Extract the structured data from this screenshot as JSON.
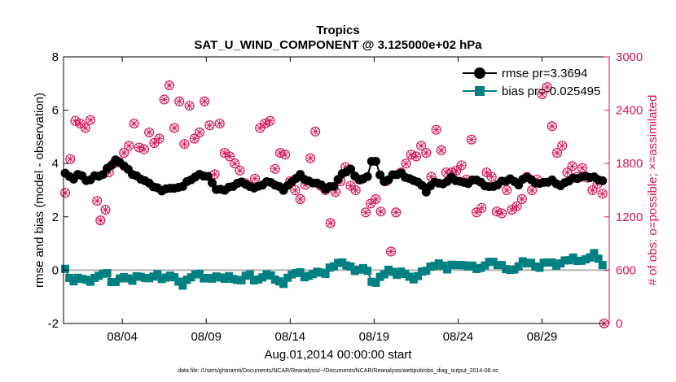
{
  "chart_data": {
    "type": "line",
    "title": "Tropics",
    "subtitle": "SAT_U_WIND_COMPONENT @ 3.125000e+02 hPa",
    "xlabel": "Aug.01,2014 00:00:00 start",
    "ylabel": "rmse and bias (model - observation)",
    "y2label": "# of obs: o=possible; ×=assimilated",
    "footnote": "data file: /Users/gharamti/Documents/NCAR/Reanalysis/~/Documents/NCAR/Reanalysis/webpub/obs_diag_output_2014-08.nc",
    "xlim": [
      0,
      32.5
    ],
    "ylim": [
      -2,
      8
    ],
    "y2lim": [
      0,
      3000
    ],
    "x_ticks": [
      3.5,
      8.5,
      13.5,
      18.5,
      23.5,
      28.5
    ],
    "x_tick_labels": [
      "08/04",
      "08/09",
      "08/14",
      "08/19",
      "08/24",
      "08/29"
    ],
    "y_ticks": [
      -2,
      0,
      2,
      4,
      6,
      8
    ],
    "y_tick_labels": [
      "-2",
      "0",
      "2",
      "4",
      "6",
      "8"
    ],
    "y2_ticks": [
      0,
      600,
      1200,
      1800,
      2400,
      3000
    ],
    "y2_tick_labels": [
      "0",
      "600",
      "1200",
      "1800",
      "2400",
      "3000"
    ],
    "zero_line": 0,
    "legend_position": "top-right",
    "colors": {
      "rmse": "#000000",
      "bias": "#008080",
      "obs": "#d4145a",
      "zero": "#b3b3b3"
    },
    "series": [
      {
        "name": "rmse",
        "legend": "rmse pr=3.3694",
        "anchors": [
          [
            0.1,
            3.6
          ],
          [
            0.6,
            3.4
          ],
          [
            1.0,
            3.7
          ],
          [
            1.4,
            3.3
          ],
          [
            1.8,
            3.5
          ],
          [
            2.2,
            3.5
          ],
          [
            2.7,
            3.9
          ],
          [
            3.1,
            4.1
          ],
          [
            3.5,
            3.95
          ],
          [
            3.9,
            3.75
          ],
          [
            4.4,
            3.5
          ],
          [
            4.9,
            3.3
          ],
          [
            5.4,
            3.15
          ],
          [
            5.9,
            3.0
          ],
          [
            6.4,
            3.05
          ],
          [
            6.9,
            3.1
          ],
          [
            7.3,
            3.3
          ],
          [
            7.8,
            3.45
          ],
          [
            8.2,
            3.6
          ],
          [
            8.7,
            3.5
          ],
          [
            9.1,
            3.0
          ],
          [
            9.6,
            3.0
          ],
          [
            10.1,
            3.2
          ],
          [
            10.6,
            3.3
          ],
          [
            11.1,
            3.1
          ],
          [
            11.6,
            3.15
          ],
          [
            12.1,
            3.3
          ],
          [
            12.6,
            3.2
          ],
          [
            13.1,
            3.05
          ],
          [
            13.6,
            3.3
          ],
          [
            14.1,
            3.55
          ],
          [
            14.6,
            3.35
          ],
          [
            15.1,
            3.25
          ],
          [
            15.6,
            3.05
          ],
          [
            16.1,
            3.2
          ],
          [
            16.6,
            3.6
          ],
          [
            17.1,
            3.75
          ],
          [
            17.6,
            3.4
          ],
          [
            18.1,
            3.5
          ],
          [
            18.5,
            4.35
          ],
          [
            18.8,
            3.6
          ],
          [
            19.2,
            3.3
          ],
          [
            19.6,
            3.55
          ],
          [
            20.1,
            3.6
          ],
          [
            20.6,
            3.45
          ],
          [
            21.1,
            3.3
          ],
          [
            21.6,
            2.95
          ],
          [
            22.1,
            3.35
          ],
          [
            22.6,
            3.2
          ],
          [
            23.1,
            3.45
          ],
          [
            23.6,
            3.35
          ],
          [
            24.1,
            3.25
          ],
          [
            24.6,
            3.4
          ],
          [
            25.1,
            3.2
          ],
          [
            25.6,
            3.1
          ],
          [
            26.1,
            3.3
          ],
          [
            26.6,
            3.45
          ],
          [
            27.1,
            3.2
          ],
          [
            27.6,
            3.5
          ],
          [
            28.1,
            3.3
          ],
          [
            28.6,
            3.25
          ],
          [
            29.1,
            3.35
          ],
          [
            29.6,
            3.2
          ],
          [
            30.1,
            3.35
          ],
          [
            30.6,
            3.45
          ],
          [
            31.1,
            3.55
          ],
          [
            31.6,
            3.45
          ],
          [
            32.2,
            3.3
          ]
        ]
      },
      {
        "name": "bias",
        "legend": "bias pr=-0.025495",
        "anchors": [
          [
            0.1,
            0.0
          ],
          [
            0.5,
            -0.5
          ],
          [
            1.0,
            -0.2
          ],
          [
            1.5,
            -0.45
          ],
          [
            2.0,
            -0.3
          ],
          [
            2.5,
            0.0
          ],
          [
            3.0,
            -0.55
          ],
          [
            3.5,
            -0.25
          ],
          [
            4.0,
            -0.35
          ],
          [
            4.5,
            -0.2
          ],
          [
            5.0,
            -0.4
          ],
          [
            5.5,
            -0.1
          ],
          [
            6.0,
            -0.35
          ],
          [
            6.5,
            -0.2
          ],
          [
            7.0,
            -0.55
          ],
          [
            7.5,
            -0.3
          ],
          [
            8.0,
            -0.15
          ],
          [
            8.5,
            -0.3
          ],
          [
            9.0,
            -0.25
          ],
          [
            9.5,
            -0.35
          ],
          [
            10.0,
            -0.2
          ],
          [
            10.5,
            -0.45
          ],
          [
            11.0,
            -0.15
          ],
          [
            11.5,
            -0.4
          ],
          [
            12.0,
            -0.15
          ],
          [
            12.5,
            -0.3
          ],
          [
            13.0,
            -0.5
          ],
          [
            13.5,
            -0.2
          ],
          [
            14.0,
            -0.1
          ],
          [
            14.5,
            -0.25
          ],
          [
            15.0,
            -0.05
          ],
          [
            15.5,
            -0.2
          ],
          [
            16.0,
            0.2
          ],
          [
            16.5,
            0.3
          ],
          [
            17.0,
            0.1
          ],
          [
            17.5,
            0.0
          ],
          [
            18.0,
            0.15
          ],
          [
            18.4,
            -0.6
          ],
          [
            18.8,
            -0.3
          ],
          [
            19.3,
            0.05
          ],
          [
            19.8,
            -0.2
          ],
          [
            20.3,
            -0.05
          ],
          [
            20.8,
            -0.35
          ],
          [
            21.3,
            -0.15
          ],
          [
            21.8,
            0.1
          ],
          [
            22.3,
            0.3
          ],
          [
            22.8,
            0.0
          ],
          [
            23.3,
            0.25
          ],
          [
            23.8,
            0.2
          ],
          [
            24.3,
            0.1
          ],
          [
            24.8,
            0.05
          ],
          [
            25.3,
            0.35
          ],
          [
            25.8,
            0.2
          ],
          [
            26.3,
            0.1
          ],
          [
            26.8,
            0.0
          ],
          [
            27.3,
            0.25
          ],
          [
            27.8,
            0.3
          ],
          [
            28.3,
            0.1
          ],
          [
            28.8,
            0.3
          ],
          [
            29.3,
            0.2
          ],
          [
            29.8,
            0.35
          ],
          [
            30.3,
            0.4
          ],
          [
            30.8,
            0.35
          ],
          [
            31.3,
            0.5
          ],
          [
            31.7,
            0.6
          ],
          [
            32.1,
            0.15
          ]
        ]
      },
      {
        "name": "obs",
        "axis": "right",
        "marker": "circle-x",
        "points": [
          [
            0.1,
            1470
          ],
          [
            0.4,
            1850
          ],
          [
            0.7,
            2280
          ],
          [
            1.0,
            2250
          ],
          [
            1.3,
            2200
          ],
          [
            1.6,
            2290
          ],
          [
            2.0,
            1380
          ],
          [
            2.2,
            1160
          ],
          [
            2.5,
            1280
          ],
          [
            2.7,
            1700
          ],
          [
            3.0,
            1800
          ],
          [
            3.3,
            1820
          ],
          [
            3.6,
            1920
          ],
          [
            3.9,
            2000
          ],
          [
            4.2,
            2250
          ],
          [
            4.5,
            1980
          ],
          [
            4.8,
            1960
          ],
          [
            5.1,
            2150
          ],
          [
            5.4,
            2030
          ],
          [
            5.7,
            2080
          ],
          [
            6.0,
            2520
          ],
          [
            6.3,
            2680
          ],
          [
            6.6,
            2200
          ],
          [
            6.9,
            2500
          ],
          [
            7.2,
            2020
          ],
          [
            7.5,
            2450
          ],
          [
            7.8,
            2080
          ],
          [
            8.1,
            2150
          ],
          [
            8.4,
            2500
          ],
          [
            8.7,
            2230
          ],
          [
            9.0,
            1680
          ],
          [
            9.3,
            2250
          ],
          [
            9.6,
            1920
          ],
          [
            9.9,
            1880
          ],
          [
            10.2,
            1800
          ],
          [
            10.5,
            1720
          ],
          [
            10.8,
            1580
          ],
          [
            11.1,
            1550
          ],
          [
            11.4,
            1630
          ],
          [
            11.7,
            2200
          ],
          [
            12.0,
            2250
          ],
          [
            12.3,
            2280
          ],
          [
            12.6,
            1740
          ],
          [
            12.9,
            1920
          ],
          [
            13.2,
            1900
          ],
          [
            13.5,
            1600
          ],
          [
            13.8,
            1500
          ],
          [
            14.1,
            1400
          ],
          [
            14.4,
            1560
          ],
          [
            14.7,
            1860
          ],
          [
            15.0,
            2160
          ],
          [
            15.3,
            1550
          ],
          [
            15.6,
            1500
          ],
          [
            15.9,
            1130
          ],
          [
            16.2,
            1480
          ],
          [
            16.5,
            1600
          ],
          [
            16.8,
            1760
          ],
          [
            17.1,
            1550
          ],
          [
            17.4,
            1500
          ],
          [
            17.7,
            1620
          ],
          [
            18.0,
            1250
          ],
          [
            18.3,
            1350
          ],
          [
            18.6,
            1400
          ],
          [
            18.9,
            1260
          ],
          [
            19.2,
            1600
          ],
          [
            19.5,
            810
          ],
          [
            19.8,
            1250
          ],
          [
            20.1,
            1700
          ],
          [
            20.4,
            1800
          ],
          [
            20.7,
            1900
          ],
          [
            21.0,
            1880
          ],
          [
            21.3,
            2000
          ],
          [
            21.6,
            1920
          ],
          [
            21.9,
            1650
          ],
          [
            22.2,
            2180
          ],
          [
            22.5,
            1950
          ],
          [
            22.8,
            1700
          ],
          [
            23.1,
            1700
          ],
          [
            23.4,
            1720
          ],
          [
            23.7,
            1780
          ],
          [
            24.0,
            1620
          ],
          [
            24.3,
            2070
          ],
          [
            24.6,
            1250
          ],
          [
            24.9,
            1300
          ],
          [
            25.2,
            1700
          ],
          [
            25.5,
            1650
          ],
          [
            25.8,
            1260
          ],
          [
            26.1,
            1240
          ],
          [
            26.4,
            1500
          ],
          [
            26.7,
            1280
          ],
          [
            27.0,
            1320
          ],
          [
            27.3,
            1400
          ],
          [
            27.6,
            1650
          ],
          [
            27.9,
            1500
          ],
          [
            28.2,
            1620
          ],
          [
            28.5,
            2580
          ],
          [
            28.8,
            2660
          ],
          [
            29.1,
            2220
          ],
          [
            29.4,
            1920
          ],
          [
            29.7,
            2000
          ],
          [
            30.0,
            1700
          ],
          [
            30.3,
            1770
          ],
          [
            30.6,
            1650
          ],
          [
            30.9,
            1750
          ],
          [
            31.2,
            1640
          ],
          [
            31.5,
            1500
          ],
          [
            31.8,
            1570
          ],
          [
            32.1,
            1460
          ],
          [
            32.2,
            0
          ]
        ]
      }
    ]
  }
}
